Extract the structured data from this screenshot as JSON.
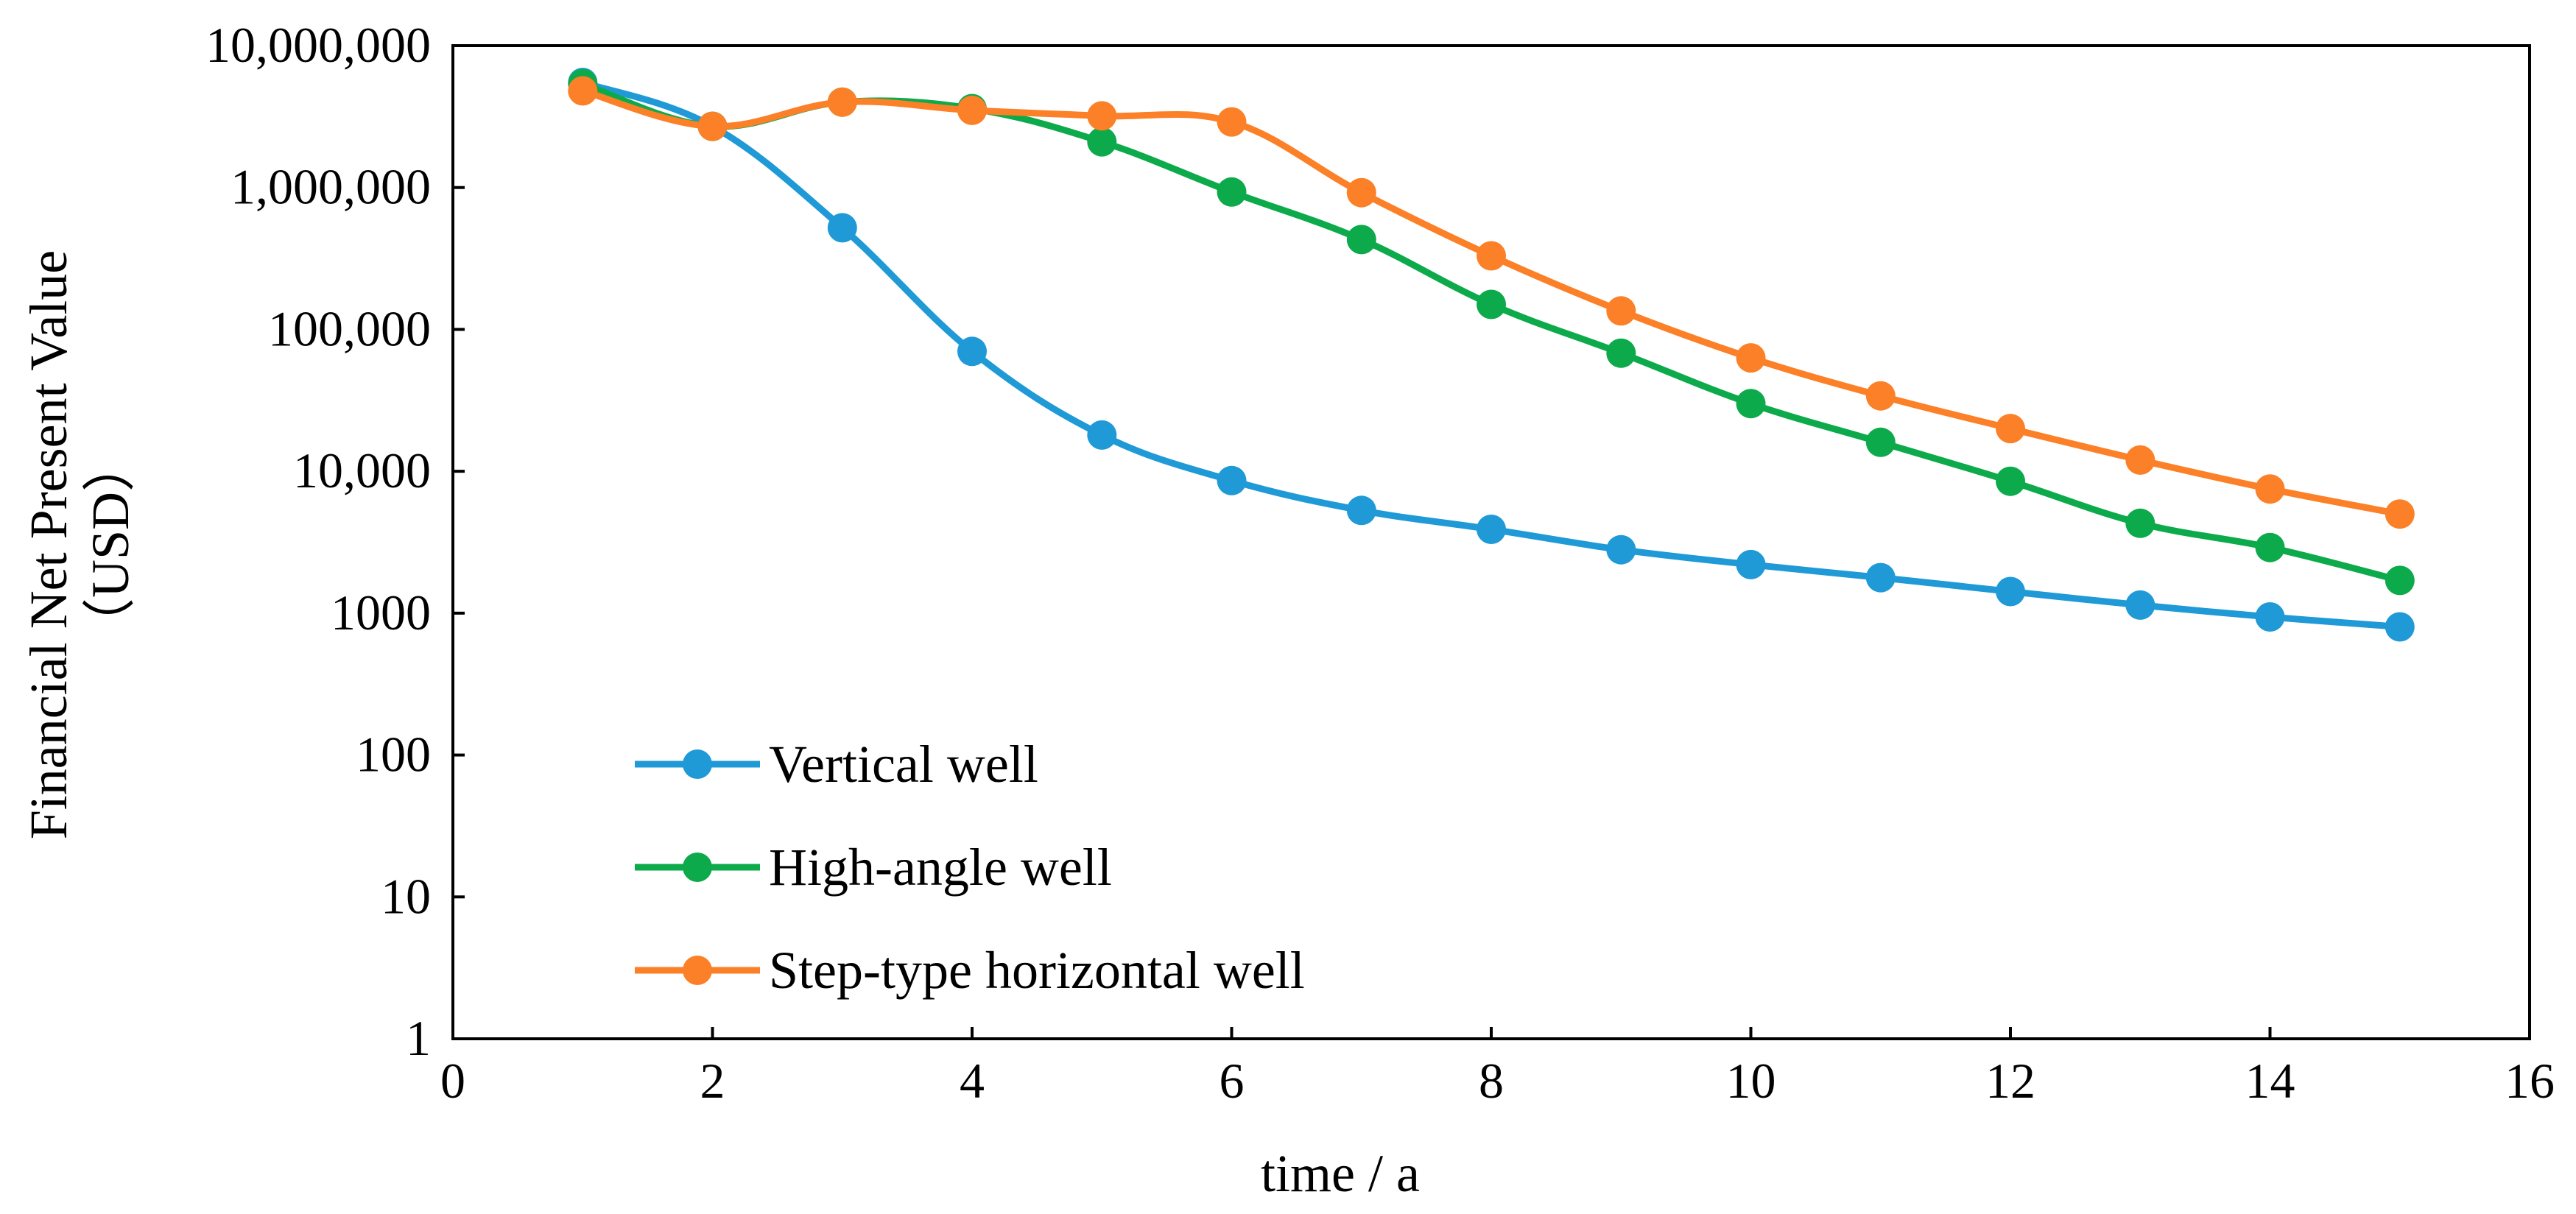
{
  "chart_data": {
    "type": "line",
    "title": "",
    "xlabel": "time / a",
    "ylabel": [
      "Financial Net Present Value",
      "（USD）"
    ],
    "xlim": [
      0,
      16
    ],
    "ylim": [
      1,
      10000000
    ],
    "yscale": "log",
    "grid": false,
    "legend_position": "bottom-left",
    "x_ticks": [
      0,
      2,
      4,
      6,
      8,
      10,
      12,
      14,
      16
    ],
    "x_tick_labels": [
      "0",
      "2",
      "4",
      "6",
      "8",
      "10",
      "12",
      "14",
      "16"
    ],
    "y_ticks": [
      1,
      10,
      100,
      1000,
      10000,
      100000,
      1000000,
      10000000
    ],
    "y_tick_labels": [
      "1",
      "10",
      "100",
      "1000",
      "10,000",
      "100,000",
      "1,000,000",
      "10,000,000"
    ],
    "x": [
      1,
      2,
      3,
      4,
      5,
      6,
      7,
      8,
      9,
      10,
      11,
      12,
      13,
      14,
      15
    ],
    "series": [
      {
        "name": "Vertical well",
        "color": "#1f9ad6",
        "values": [
          5500000,
          2700000,
          520000,
          70000,
          18000,
          8600,
          5300,
          3900,
          2800,
          2200,
          1780,
          1420,
          1140,
          940,
          800
        ]
      },
      {
        "name": "High-angle well",
        "color": "#0daa4b",
        "values": [
          5400000,
          2700000,
          4000000,
          3600000,
          2100000,
          930000,
          430000,
          150000,
          68000,
          30000,
          16000,
          8500,
          4300,
          2900,
          1700
        ]
      },
      {
        "name": "Step-type horizontal well",
        "color": "#fb8027",
        "values": [
          4800000,
          2700000,
          4000000,
          3500000,
          3200000,
          2900000,
          920000,
          330000,
          135000,
          63000,
          34000,
          20000,
          12000,
          7500,
          5000
        ]
      }
    ]
  }
}
